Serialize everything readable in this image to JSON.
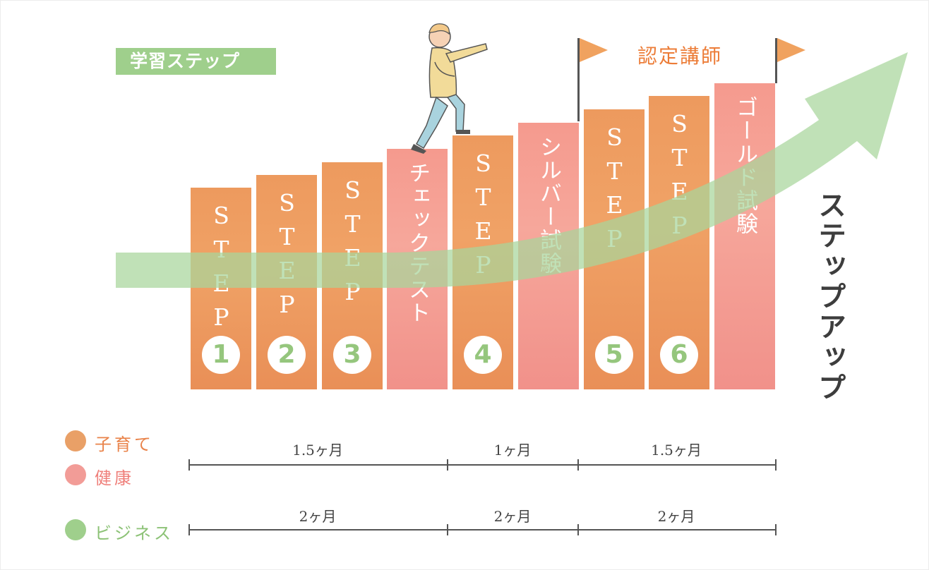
{
  "header": {
    "badge": "学習ステップ",
    "certification": "認定講師"
  },
  "steps": [
    {
      "label": "STEP",
      "number": "1",
      "category": "orange"
    },
    {
      "label": "STEP",
      "number": "2",
      "category": "orange"
    },
    {
      "label": "STEP",
      "number": "3",
      "category": "orange"
    },
    {
      "label": "チェックテスト",
      "number": "",
      "category": "pink"
    },
    {
      "label": "STEP",
      "number": "4",
      "category": "orange"
    },
    {
      "label": "シルバー試験",
      "number": "",
      "category": "pink"
    },
    {
      "label": "STEP",
      "number": "5",
      "category": "orange"
    },
    {
      "label": "STEP",
      "number": "6",
      "category": "orange"
    },
    {
      "label": "ゴールド試験",
      "number": "",
      "category": "pink"
    }
  ],
  "side_label": "ステップアップ",
  "legend": [
    {
      "label": "子育て",
      "color": "#e9a067"
    },
    {
      "label": "健康",
      "color": "#f29c97"
    },
    {
      "label": "ビジネス",
      "color": "#9fcf8c"
    }
  ],
  "timeline_top": [
    "1.5ヶ月",
    "1ヶ月",
    "1.5ヶ月"
  ],
  "timeline_bottom": [
    "2ヶ月",
    "2ヶ月",
    "2ヶ月"
  ],
  "colors": {
    "orange": "#ed9a5e",
    "pink": "#f59a8e",
    "green": "#9fcf8c",
    "flag": "#f0a25f"
  }
}
